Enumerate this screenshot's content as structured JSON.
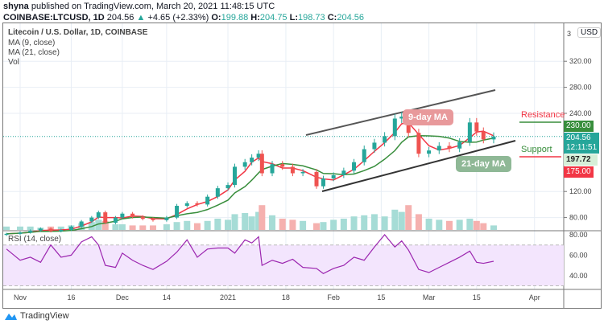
{
  "header": {
    "author": "shyna",
    "published": "published on TradingView.com, March 20, 2021 11:48:15 UTC",
    "symbol": "COINBASE:LTCUSD, 1D",
    "price": "204.56",
    "change": "+4.65 (+2.33%)",
    "o_label": "O:",
    "o": "199.88",
    "h_label": "H:",
    "h": "204.75",
    "l_label": "L:",
    "l": "198.73",
    "c_label": "C:",
    "c": "204.56"
  },
  "legend": {
    "title": "Litecoin / U.S. Dollar, 1D, COINBASE",
    "ma9": "MA (9, close)",
    "ma21": "MA (21, close)",
    "vol": "Vol",
    "rsi": "RSI (14, close)"
  },
  "axis": {
    "currency": "USD",
    "top_partial": "3"
  },
  "tags": {
    "resistance": "230.00",
    "current": "204.56",
    "countdown": "12:11:51",
    "support": "197.72",
    "low": "175.00"
  },
  "annotations": {
    "resistance": "Resistance",
    "support": "Support",
    "ma9": "9-day MA",
    "ma21": "21-day MA"
  },
  "colors": {
    "up": "#26a69a",
    "down": "#ef5350",
    "ma9": "#f23645",
    "ma21": "#388e3c",
    "rsi": "#9c27b0",
    "rsi_band": "#f3e5fd"
  },
  "brand": "TradingView",
  "chart_data": {
    "type": "candlestick",
    "title": "Litecoin / U.S. Dollar, 1D, COINBASE",
    "y_range": [
      60,
      340
    ],
    "y_ticks": [
      "320.00",
      "280.00",
      "240.00",
      "120.00",
      "80.00"
    ],
    "x_ticks": [
      "Nov",
      "16",
      "Dec",
      "14",
      "2021",
      "18",
      "Feb",
      "15",
      "Mar",
      "15",
      "Apr"
    ],
    "x_tick_dates": [
      "2020-11-01",
      "2020-11-16",
      "2020-12-01",
      "2020-12-14",
      "2021-01-01",
      "2021-01-18",
      "2021-02-01",
      "2021-02-15",
      "2021-03-01",
      "2021-03-15",
      "2021-04-01"
    ],
    "dates": [
      "2020-10-28",
      "2020-11-01",
      "2020-11-04",
      "2020-11-07",
      "2020-11-10",
      "2020-11-13",
      "2020-11-16",
      "2020-11-19",
      "2020-11-22",
      "2020-11-24",
      "2020-11-26",
      "2020-11-29",
      "2020-12-01",
      "2020-12-04",
      "2020-12-07",
      "2020-12-10",
      "2020-12-14",
      "2020-12-17",
      "2020-12-20",
      "2020-12-23",
      "2020-12-26",
      "2020-12-29",
      "2021-01-01",
      "2021-01-03",
      "2021-01-06",
      "2021-01-08",
      "2021-01-10",
      "2021-01-11",
      "2021-01-14",
      "2021-01-17",
      "2021-01-20",
      "2021-01-23",
      "2021-01-27",
      "2021-01-29",
      "2021-02-01",
      "2021-02-04",
      "2021-02-07",
      "2021-02-10",
      "2021-02-13",
      "2021-02-16",
      "2021-02-19",
      "2021-02-21",
      "2021-02-23",
      "2021-02-26",
      "2021-03-01",
      "2021-03-04",
      "2021-03-07",
      "2021-03-10",
      "2021-03-13",
      "2021-03-15",
      "2021-03-17",
      "2021-03-20"
    ],
    "close": [
      55,
      57,
      60,
      63,
      59,
      61,
      66,
      74,
      80,
      88,
      72,
      80,
      86,
      81,
      78,
      76,
      80,
      98,
      102,
      100,
      112,
      125,
      130,
      158,
      165,
      172,
      178,
      148,
      162,
      158,
      148,
      150,
      128,
      140,
      145,
      152,
      165,
      185,
      195,
      205,
      232,
      235,
      210,
      178,
      183,
      190,
      186,
      196,
      226,
      212,
      200,
      204.56
    ],
    "rsi_range": [
      25,
      85
    ],
    "rsi_ticks": [
      "80.00",
      "60.00",
      "40.00"
    ],
    "rsi_levels": [
      70,
      30
    ],
    "rsi": [
      66,
      55,
      58,
      53,
      70,
      58,
      60,
      73,
      78,
      70,
      50,
      48,
      62,
      55,
      50,
      46,
      54,
      63,
      75,
      58,
      66,
      67,
      67,
      62,
      75,
      72,
      78,
      50,
      55,
      52,
      56,
      48,
      47,
      42,
      47,
      50,
      58,
      55,
      68,
      80,
      68,
      74,
      65,
      46,
      43,
      48,
      53,
      58,
      64,
      53,
      52,
      54
    ],
    "volume": [
      3,
      3,
      3,
      2,
      3,
      3,
      4,
      6,
      7,
      9,
      8,
      5,
      5,
      4,
      4,
      4,
      5,
      7,
      8,
      6,
      8,
      10,
      9,
      14,
      15,
      12,
      16,
      22,
      13,
      10,
      9,
      8,
      6,
      7,
      9,
      10,
      12,
      13,
      14,
      12,
      18,
      16,
      22,
      14,
      10,
      9,
      8,
      9,
      10,
      8,
      6,
      4
    ]
  }
}
